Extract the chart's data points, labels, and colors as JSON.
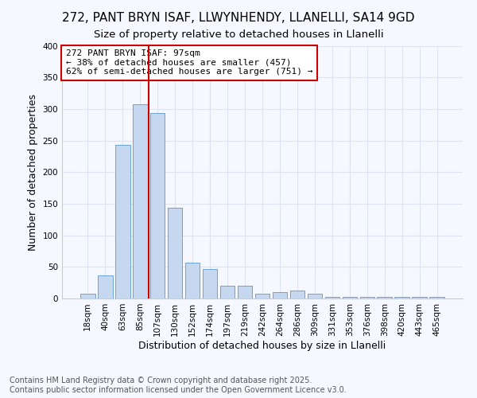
{
  "title1": "272, PANT BRYN ISAF, LLWYNHENDY, LLANELLI, SA14 9GD",
  "title2": "Size of property relative to detached houses in Llanelli",
  "xlabel": "Distribution of detached houses by size in Llanelli",
  "ylabel": "Number of detached properties",
  "categories": [
    "18sqm",
    "40sqm",
    "63sqm",
    "85sqm",
    "107sqm",
    "130sqm",
    "152sqm",
    "174sqm",
    "197sqm",
    "219sqm",
    "242sqm",
    "264sqm",
    "286sqm",
    "309sqm",
    "331sqm",
    "353sqm",
    "376sqm",
    "398sqm",
    "420sqm",
    "443sqm",
    "465sqm"
  ],
  "values": [
    8,
    37,
    243,
    307,
    293,
    143,
    57,
    47,
    20,
    20,
    8,
    10,
    12,
    8,
    3,
    3,
    3,
    2,
    2,
    2,
    3
  ],
  "bar_color": "#c5d8f0",
  "bar_edge_color": "#6ba3d6",
  "vline_x": 3.5,
  "vline_color": "#cc0000",
  "annotation_text": "272 PANT BRYN ISAF: 97sqm\n← 38% of detached houses are smaller (457)\n62% of semi-detached houses are larger (751) →",
  "annotation_box_color": "white",
  "annotation_box_edge": "#cc0000",
  "ylim": [
    0,
    400
  ],
  "yticks": [
    0,
    50,
    100,
    150,
    200,
    250,
    300,
    350,
    400
  ],
  "footer": "Contains HM Land Registry data © Crown copyright and database right 2025.\nContains public sector information licensed under the Open Government Licence v3.0.",
  "bg_color": "#f5f8ff",
  "grid_color": "#dde4ef",
  "title_fontsize": 11,
  "subtitle_fontsize": 9.5,
  "axis_fontsize": 9,
  "tick_fontsize": 7.5,
  "footer_fontsize": 7
}
